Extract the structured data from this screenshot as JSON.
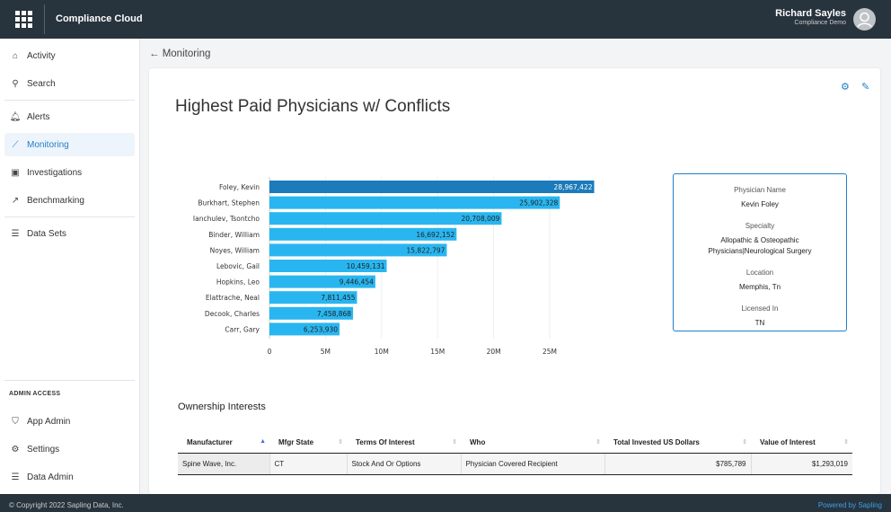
{
  "header": {
    "app_title": "Compliance Cloud",
    "user_name": "Richard Sayles",
    "user_org": "Compliance Demo"
  },
  "sidebar": {
    "items": [
      {
        "label": "Activity",
        "icon": "home-icon"
      },
      {
        "label": "Search",
        "icon": "search-icon"
      },
      {
        "label": "Alerts",
        "icon": "bell-icon"
      },
      {
        "label": "Monitoring",
        "icon": "telescope-icon"
      },
      {
        "label": "Investigations",
        "icon": "briefcase-icon"
      },
      {
        "label": "Benchmarking",
        "icon": "chart-line-icon"
      },
      {
        "label": "Data Sets",
        "icon": "database-icon"
      }
    ],
    "admin_heading": "ADMIN ACCESS",
    "admin_items": [
      {
        "label": "App Admin",
        "icon": "shield-icon"
      },
      {
        "label": "Settings",
        "icon": "gear-icon"
      },
      {
        "label": "Data Admin",
        "icon": "database-icon"
      }
    ]
  },
  "breadcrumb": {
    "back_label": "Monitoring"
  },
  "page": {
    "title": "Highest Paid Physicians w/ Conflicts"
  },
  "chart_data": {
    "type": "bar",
    "orientation": "horizontal",
    "categories": [
      "Foley, Kevin",
      "Burkhart, Stephen",
      "Ianchulev, Tsontcho",
      "Binder, William",
      "Noyes, William",
      "Lebovic, Gail",
      "Hopkins, Leo",
      "Elattrache, Neal",
      "Decook, Charles",
      "Carr, Gary"
    ],
    "values": [
      28967422,
      25902328,
      20708009,
      16692152,
      15822797,
      10459131,
      9446454,
      7811455,
      7458868,
      6253930
    ],
    "labels": [
      "28,967,422",
      "25,902,328",
      "20,708,009",
      "16,692,152",
      "15,822,797",
      "10,459,131",
      "9,446,454",
      "7,811,455",
      "7,458,868",
      "6,253,930"
    ],
    "xticks": [
      0,
      5000000,
      10000000,
      15000000,
      20000000,
      25000000
    ],
    "xtick_labels": [
      "0",
      "5M",
      "10M",
      "15M",
      "20M",
      "25M"
    ],
    "xlim": [
      0,
      29000000
    ],
    "highlight_index": 0,
    "colors": {
      "bar": "#29b6f0",
      "highlight": "#1b7bbb"
    }
  },
  "details": {
    "fields": [
      {
        "label": "Physician Name",
        "value": "Kevin Foley"
      },
      {
        "label": "Specialty",
        "value": "Allopathic & Osteopathic Physicians|Neurological Surgery"
      },
      {
        "label": "Location",
        "value": "Memphis, Tn"
      },
      {
        "label": "Licensed In",
        "value": "TN"
      }
    ]
  },
  "ownership": {
    "title": "Ownership Interests",
    "columns": [
      "Manufacturer",
      "Mfgr State",
      "Terms Of Interest",
      "Who",
      "Total Invested US Dollars",
      "Value of Interest"
    ],
    "rows": [
      [
        "Spine Wave, Inc.",
        "CT",
        "Stock And Or Options",
        "Physician Covered Recipient",
        "$785,789",
        "$1,293,019"
      ]
    ]
  },
  "footer": {
    "copyright": "© Copyright 2022 Sapling Data, Inc.",
    "powered": "Powered by Sapling"
  }
}
